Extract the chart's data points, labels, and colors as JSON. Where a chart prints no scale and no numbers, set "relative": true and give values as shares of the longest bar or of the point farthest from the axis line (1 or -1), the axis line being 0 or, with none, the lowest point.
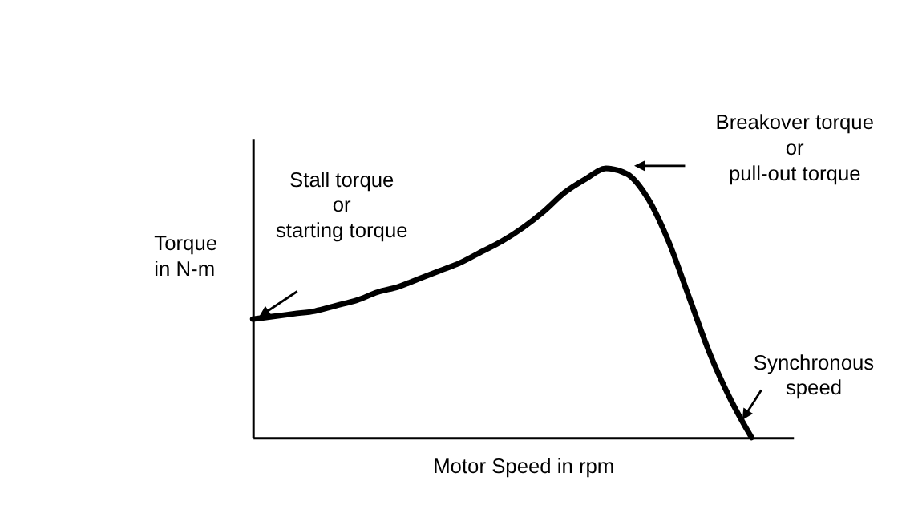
{
  "chart_data": {
    "type": "line",
    "relative": true,
    "xlabel": "Motor Speed in rpm",
    "ylabel": "Torque\nin N-m",
    "categories": [
      null,
      null,
      null,
      null,
      null,
      null,
      null,
      null,
      null,
      null,
      null,
      null,
      null,
      null,
      null,
      null,
      null,
      null,
      null,
      null,
      null,
      null,
      null,
      null,
      null,
      null,
      null
    ],
    "series": [
      {
        "color": "#000000",
        "values": [
          0.44,
          0.45,
          0.46,
          0.47,
          0.49,
          0.51,
          0.54,
          0.56,
          0.59,
          0.62,
          0.65,
          0.69,
          0.73,
          0.78,
          0.84,
          0.91,
          0.96,
          1.0,
          0.98,
          0.89,
          0.73,
          0.52,
          0.31,
          0.14,
          0,
          null,
          null
        ]
      }
    ],
    "annotations": [
      "Stall torque\nor\nstarting torque",
      "Breakover torque\nor\npull-out torque",
      "Synchronous\nspeed"
    ],
    "grid": false,
    "legend": false,
    "marker": "none",
    "line_style": "solid"
  }
}
